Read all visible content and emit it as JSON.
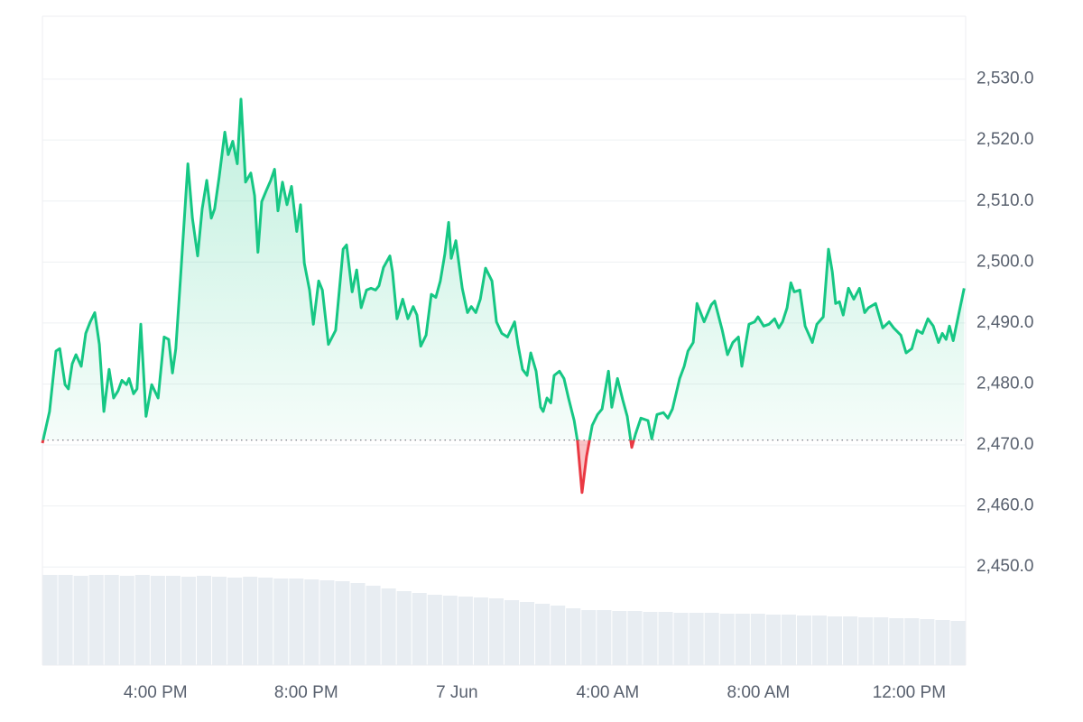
{
  "chart_data": {
    "type": "line",
    "x": [
      13.0,
      13.19,
      13.36,
      13.46,
      13.6,
      13.69,
      13.79,
      13.89,
      14.03,
      14.15,
      14.27,
      14.39,
      14.51,
      14.63,
      14.77,
      14.89,
      15.01,
      15.11,
      15.23,
      15.3,
      15.42,
      15.51,
      15.61,
      15.75,
      15.9,
      16.07,
      16.23,
      16.35,
      16.45,
      16.54,
      16.66,
      16.86,
      16.98,
      17.12,
      17.24,
      17.36,
      17.48,
      17.57,
      17.69,
      17.84,
      17.93,
      18.05,
      18.17,
      18.27,
      18.39,
      18.53,
      18.63,
      18.72,
      18.82,
      18.94,
      19.06,
      19.16,
      19.25,
      19.37,
      19.49,
      19.61,
      19.75,
      19.85,
      19.95,
      20.09,
      20.19,
      20.33,
      20.43,
      20.59,
      20.78,
      20.98,
      21.07,
      21.22,
      21.34,
      21.46,
      21.6,
      21.72,
      21.84,
      21.93,
      22.05,
      22.22,
      22.29,
      22.41,
      22.56,
      22.7,
      22.84,
      22.94,
      23.04,
      23.18,
      23.32,
      23.44,
      23.56,
      23.68,
      23.78,
      23.85,
      23.97,
      24.14,
      24.28,
      24.38,
      24.5,
      24.62,
      24.76,
      24.93,
      25.05,
      25.19,
      25.34,
      25.53,
      25.62,
      25.74,
      25.86,
      25.96,
      26.1,
      26.22,
      26.29,
      26.39,
      26.49,
      26.58,
      26.72,
      26.84,
      26.96,
      27.11,
      27.2,
      27.32,
      27.44,
      27.59,
      27.73,
      27.85,
      28.02,
      28.11,
      28.26,
      28.4,
      28.52,
      28.64,
      28.74,
      28.88,
      29.07,
      29.17,
      29.31,
      29.48,
      29.6,
      29.72,
      29.91,
      30.03,
      30.13,
      30.27,
      30.37,
      30.56,
      30.75,
      30.84,
      31.04,
      31.18,
      31.32,
      31.47,
      31.56,
      31.75,
      31.9,
      31.99,
      32.14,
      32.28,
      32.43,
      32.54,
      32.64,
      32.76,
      32.86,
      32.95,
      33.1,
      33.24,
      33.43,
      33.55,
      33.72,
      33.86,
      33.96,
      34.05,
      34.15,
      34.25,
      34.39,
      34.53,
      34.68,
      34.82,
      34.92,
      35.11,
      35.3,
      35.47,
      35.59,
      35.78,
      35.92,
      36.07,
      36.21,
      36.35,
      36.5,
      36.64,
      36.78,
      36.88,
      36.98,
      37.07,
      37.17,
      37.31,
      37.46
    ],
    "series": [
      {
        "color": "#16c784",
        "negative_color": "#ea3943",
        "values": [
          2470.3,
          2475.5,
          2485.4,
          2485.8,
          2479.9,
          2479.2,
          2483.3,
          2484.8,
          2482.9,
          2488.3,
          2490.2,
          2491.7,
          2486.5,
          2475.5,
          2482.4,
          2477.7,
          2478.9,
          2480.6,
          2479.9,
          2480.9,
          2478.4,
          2479.2,
          2489.8,
          2474.7,
          2479.9,
          2477.7,
          2487.7,
          2487.3,
          2481.8,
          2485.8,
          2496.9,
          2516.1,
          2507.2,
          2501.0,
          2508.7,
          2513.4,
          2507.2,
          2508.7,
          2513.9,
          2521.3,
          2517.6,
          2519.8,
          2516.1,
          2526.7,
          2513.1,
          2514.6,
          2510.9,
          2501.6,
          2509.9,
          2511.7,
          2513.4,
          2515.2,
          2508.4,
          2513.1,
          2509.4,
          2512.4,
          2505.0,
          2509.4,
          2499.8,
          2495.4,
          2489.8,
          2496.9,
          2495.4,
          2486.5,
          2488.8,
          2502.1,
          2502.8,
          2495.1,
          2498.7,
          2492.5,
          2495.4,
          2495.7,
          2495.4,
          2496.1,
          2499.1,
          2501.0,
          2498.4,
          2490.7,
          2493.9,
          2490.7,
          2492.7,
          2491.3,
          2486.2,
          2488.0,
          2494.7,
          2494.2,
          2496.9,
          2501.3,
          2506.5,
          2500.6,
          2503.5,
          2495.7,
          2491.7,
          2492.7,
          2491.7,
          2493.9,
          2499.0,
          2496.9,
          2490.2,
          2488.3,
          2487.7,
          2490.2,
          2486.5,
          2482.4,
          2481.4,
          2485.1,
          2482.1,
          2476.2,
          2475.5,
          2477.7,
          2476.9,
          2481.4,
          2482.1,
          2480.9,
          2477.7,
          2474.0,
          2470.6,
          2462.2,
          2468.1,
          2473.2,
          2475.0,
          2475.9,
          2482.1,
          2476.2,
          2480.9,
          2477.4,
          2474.7,
          2469.6,
          2471.8,
          2474.4,
          2474.0,
          2471.0,
          2475.0,
          2475.3,
          2474.4,
          2475.9,
          2480.9,
          2482.9,
          2485.4,
          2486.8,
          2493.2,
          2490.2,
          2493.0,
          2493.6,
          2488.8,
          2484.8,
          2486.8,
          2487.7,
          2482.9,
          2489.8,
          2490.2,
          2491.0,
          2489.5,
          2489.8,
          2490.7,
          2489.2,
          2490.2,
          2492.5,
          2496.6,
          2495.1,
          2495.4,
          2489.5,
          2486.8,
          2489.8,
          2491.0,
          2502.1,
          2498.4,
          2493.2,
          2493.5,
          2491.3,
          2495.7,
          2493.9,
          2495.7,
          2491.7,
          2492.5,
          2493.2,
          2489.2,
          2490.2,
          2489.2,
          2488.0,
          2485.1,
          2485.8,
          2488.8,
          2488.3,
          2490.7,
          2489.5,
          2486.8,
          2488.3,
          2487.3,
          2489.5,
          2487.1,
          2491.3,
          2495.7
        ]
      }
    ],
    "baseline": 2470.8,
    "volume": {
      "color": "#e8edf2",
      "values": [
        100,
        100,
        99,
        100,
        100,
        99,
        100,
        99,
        99,
        98,
        99,
        98,
        97,
        98,
        97,
        96,
        96,
        95,
        94,
        93,
        91,
        88,
        85,
        82,
        80,
        78,
        77,
        76,
        75,
        74,
        72,
        70,
        68,
        66,
        63,
        61,
        61,
        60,
        60,
        59,
        59,
        58,
        58,
        58,
        57,
        57,
        57,
        56,
        56,
        55,
        55,
        54,
        54,
        53,
        53,
        52,
        52,
        51,
        50,
        49
      ]
    },
    "xlim": [
      13,
      37.5
    ],
    "xticks": [
      {
        "value": 16,
        "label": "4:00 PM"
      },
      {
        "value": 20,
        "label": "8:00 PM"
      },
      {
        "value": 24,
        "label": "7 Jun"
      },
      {
        "value": 28,
        "label": "4:00 AM"
      },
      {
        "value": 32,
        "label": "8:00 AM"
      },
      {
        "value": 36,
        "label": "12:00 PM"
      }
    ],
    "ylim": [
      2433.9,
      2540.3
    ],
    "yticks": [
      {
        "value": 2450,
        "label": "2,450.0"
      },
      {
        "value": 2460,
        "label": "2,460.0"
      },
      {
        "value": 2470,
        "label": "2,470.0"
      },
      {
        "value": 2480,
        "label": "2,480.0"
      },
      {
        "value": 2490,
        "label": "2,490.0"
      },
      {
        "value": 2500,
        "label": "2,500.0"
      },
      {
        "value": 2510,
        "label": "2,510.0"
      },
      {
        "value": 2520,
        "label": "2,520.0"
      },
      {
        "value": 2530,
        "label": "2,530.0"
      }
    ],
    "grid": true
  }
}
